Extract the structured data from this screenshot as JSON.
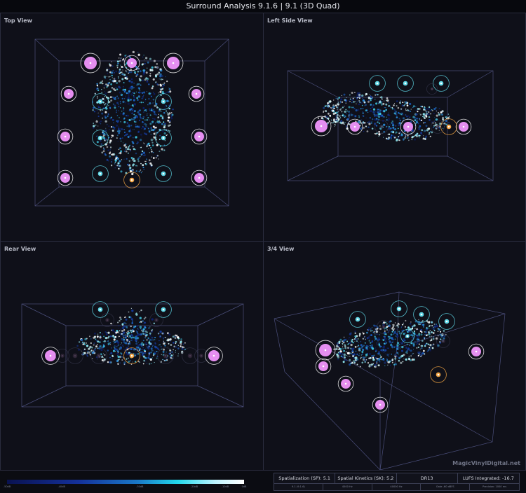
{
  "window": {
    "title": "Surround Analysis 9.1.6 | 9.1 (3D Quad)"
  },
  "panels": {
    "top": {
      "label": "Top View"
    },
    "left": {
      "label": "Left Side View"
    },
    "rear": {
      "label": "Rear View"
    },
    "quarter": {
      "label": "3/4 View"
    }
  },
  "colors": {
    "speaker_front": "#e58ef0",
    "speaker_height": "#5ed7e6",
    "speaker_lfe": "#f2a443",
    "frame_lines": "#4a4e7a",
    "background": "#0f1019"
  },
  "footer": {
    "scale": {
      "ticks": [
        "-50dB",
        "-40dB",
        "-30dB",
        "-20dB",
        "-10dB",
        "0dB"
      ]
    },
    "metrics": {
      "row1": [
        "Spatialization (SP): 5.1",
        "Spatial Kinetics (SK): 5.2",
        "DR13",
        "LUFS Integrated: -16.7"
      ],
      "row2": [
        "9.1 (9.1.6)",
        "4500 Hz",
        "40000 Hz",
        "Gate -60 dBFS",
        "Precision: 1000 ms"
      ]
    },
    "watermark": "MagicVinylDigital.net"
  }
}
